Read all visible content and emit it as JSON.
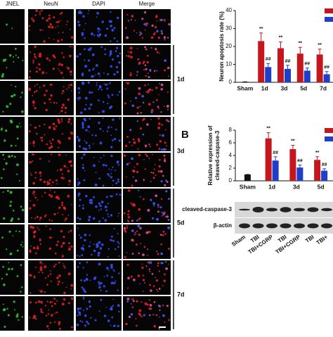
{
  "microscopy": {
    "columns": [
      "JNEL",
      "NeuN",
      "DAPI",
      "Merge"
    ],
    "time_labels": [
      "1d",
      "3d",
      "5d",
      "7d"
    ]
  },
  "panel_label_b": "B",
  "chart_data": [
    {
      "type": "bar",
      "y_label": "Neuron apoptosis rate (%)",
      "categories": [
        "Sham",
        "1d",
        "3d",
        "5d",
        "7d"
      ],
      "ylim": [
        0,
        40
      ],
      "yticks": [
        0,
        10,
        20,
        30,
        40
      ],
      "series": [
        {
          "color": "#111111",
          "values": [
            0.3,
            null,
            null,
            null,
            null
          ],
          "errors": [
            0,
            null,
            null,
            null,
            null
          ],
          "significance": [
            null,
            null,
            null,
            null,
            null
          ]
        },
        {
          "color": "#c4161c",
          "values": [
            null,
            23,
            19,
            16,
            15.5
          ],
          "errors": [
            null,
            4.5,
            3.5,
            3.5,
            3
          ],
          "significance": [
            null,
            "**",
            "**",
            "**",
            "**"
          ]
        },
        {
          "color": "#1f3fc8",
          "values": [
            null,
            8.5,
            7.5,
            6.5,
            4.5
          ],
          "errors": [
            null,
            2,
            2,
            1.5,
            1.5
          ],
          "significance": [
            null,
            "##",
            "##",
            "##",
            "##"
          ]
        }
      ]
    },
    {
      "type": "bar",
      "y_label": "Relative expression of cleaved-caspase-3",
      "categories": [
        "Sham",
        "1d",
        "3d",
        "5d"
      ],
      "ylim": [
        0,
        8
      ],
      "yticks": [
        0,
        2,
        4,
        6,
        8
      ],
      "series": [
        {
          "color": "#111111",
          "values": [
            1,
            null,
            null,
            null
          ],
          "errors": [
            0,
            null,
            null,
            null
          ],
          "significance": [
            null,
            null,
            null,
            null
          ]
        },
        {
          "color": "#c4161c",
          "values": [
            null,
            6.7,
            5,
            3.3
          ],
          "errors": [
            null,
            0.9,
            0.6,
            0.5
          ],
          "significance": [
            null,
            "**",
            "**",
            "**"
          ]
        },
        {
          "color": "#1f3fc8",
          "values": [
            null,
            3.2,
            2.1,
            1.6
          ],
          "errors": [
            null,
            0.6,
            0.4,
            0.3
          ],
          "significance": [
            null,
            "##",
            "##",
            "##"
          ]
        }
      ]
    }
  ],
  "blot": {
    "rows": [
      "cleaved-caspase-3",
      "β-actin"
    ],
    "lanes": [
      "Sham",
      "TBI",
      "TBI+CGRP",
      "TBI",
      "TBI+CGRP",
      "TBI",
      "TBI+"
    ]
  }
}
